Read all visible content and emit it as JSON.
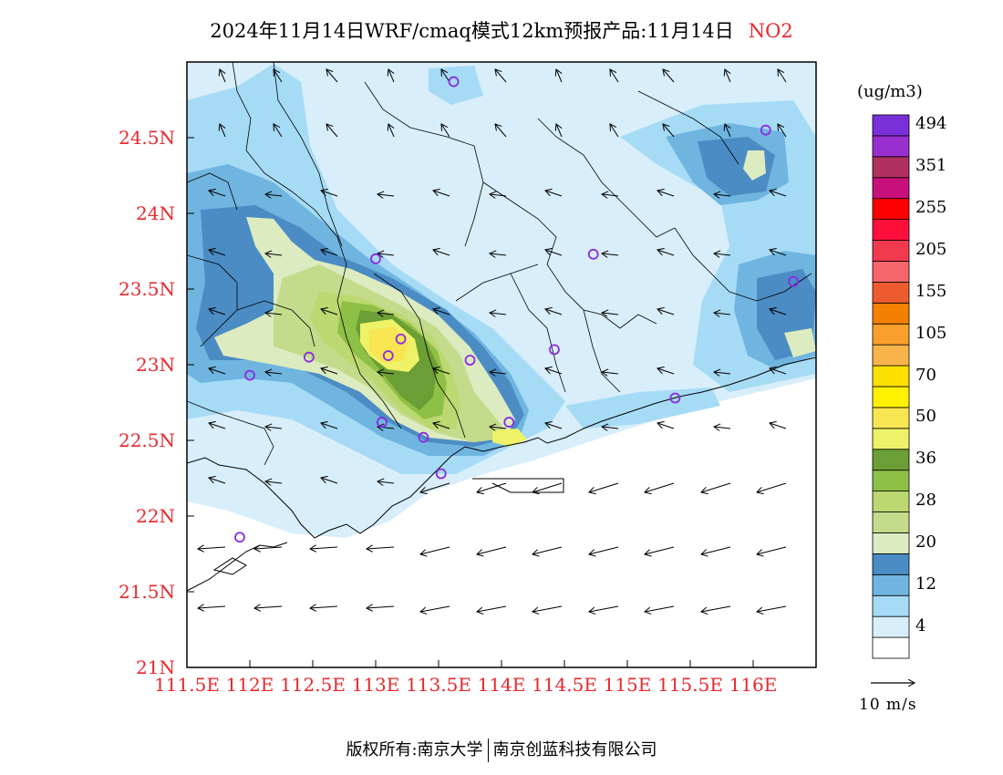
{
  "title": {
    "main": "2024年11月14日WRF/cmaq模式12km预报产品:11月14日",
    "pollutant": "NO2"
  },
  "axes": {
    "lat_labels": [
      "24.5N",
      "24N",
      "23.5N",
      "23N",
      "22.5N",
      "22N",
      "21.5N",
      "21N"
    ],
    "lon_labels": [
      "111.5E",
      "112E",
      "112.5E",
      "113E",
      "113.5E",
      "114E",
      "114.5E",
      "115E",
      "115.5E",
      "116E"
    ],
    "lat_values": [
      24.5,
      24.0,
      23.5,
      23.0,
      22.5,
      22.0,
      21.5,
      21.0
    ],
    "lon_values": [
      111.5,
      112.0,
      112.5,
      113.0,
      113.5,
      114.0,
      114.5,
      115.0,
      115.5,
      116.0
    ],
    "lon_range": [
      111.5,
      116.5
    ],
    "lat_range": [
      21.0,
      25.0
    ],
    "label_color": "#e8282d"
  },
  "legend": {
    "unit": "(ug/m3)",
    "colors": [
      "#ffffff",
      "#d8eefa",
      "#a6dbf5",
      "#6fb5e0",
      "#4b8cc4",
      "#dcebc0",
      "#c3db8a",
      "#bcd870",
      "#8fc046",
      "#6b9e34",
      "#eef268",
      "#f7e652",
      "#fff100",
      "#fbe000",
      "#f8b34b",
      "#f8a02b",
      "#f48000",
      "#ed5c2e",
      "#f5676a",
      "#f23a4f",
      "#ff0f3c",
      "#ff0000",
      "#c8107c",
      "#b03060",
      "#9a2fd0",
      "#7a30d8"
    ],
    "tick_labels": [
      "4",
      "12",
      "20",
      "28",
      "36",
      "50",
      "70",
      "105",
      "155",
      "205",
      "255",
      "351",
      "494"
    ]
  },
  "wind_reference": {
    "label": "10 m/s"
  },
  "monitoring_sites": [
    [
      113.62,
      24.87
    ],
    [
      116.1,
      24.55
    ],
    [
      113.0,
      23.7
    ],
    [
      114.73,
      23.73
    ],
    [
      116.32,
      23.55
    ],
    [
      113.2,
      23.17
    ],
    [
      113.1,
      23.06
    ],
    [
      112.47,
      23.05
    ],
    [
      113.75,
      23.03
    ],
    [
      114.42,
      23.1
    ],
    [
      112.0,
      22.93
    ],
    [
      113.05,
      22.62
    ],
    [
      114.06,
      22.62
    ],
    [
      113.38,
      22.52
    ],
    [
      115.38,
      22.78
    ],
    [
      113.52,
      22.28
    ],
    [
      111.92,
      21.86
    ]
  ],
  "footer": {
    "copyright": "版权所有:南京大学",
    "company": "南京创蓝科技有限公司"
  }
}
